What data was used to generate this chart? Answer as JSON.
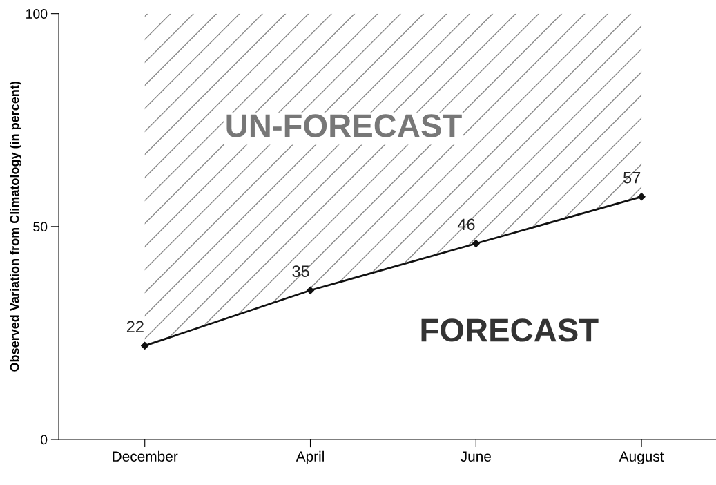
{
  "chart_data": {
    "type": "line",
    "ylabel": "Observed Variation from Climatology (in percent)",
    "categories": [
      "December",
      "April",
      "June",
      "August"
    ],
    "series": [
      {
        "color": "#111111",
        "values": [
          22,
          35,
          46,
          57
        ]
      }
    ],
    "ylim": [
      0,
      100
    ],
    "yticks": [
      0,
      50,
      100
    ],
    "data_labels": true,
    "marker": "diamond",
    "line_style": "solid",
    "annotations": [
      "UN-FORECAST",
      "FORECAST"
    ]
  }
}
